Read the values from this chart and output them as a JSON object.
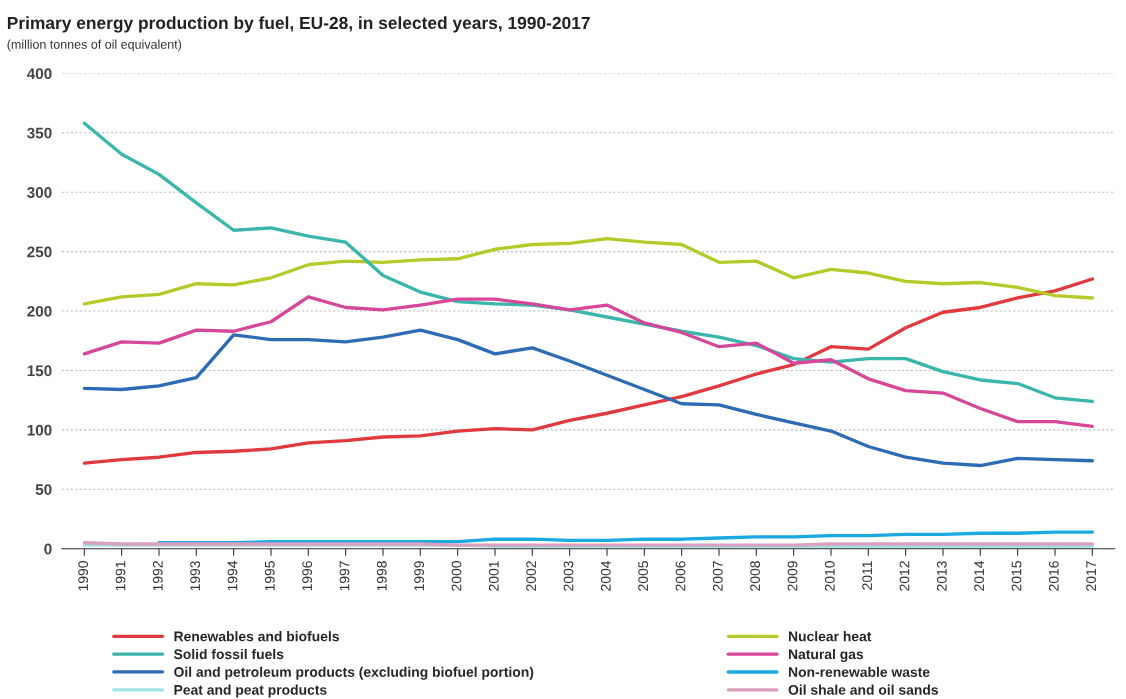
{
  "chart_data": {
    "type": "line",
    "title": "Primary energy production by fuel, EU-28, in selected years, 1990-2017",
    "subtitle": "(million tonnes of oil equivalent)",
    "categories": [
      "1990",
      "1991",
      "1992",
      "1993",
      "1994",
      "1995",
      "1996",
      "1997",
      "1998",
      "1999",
      "2000",
      "2001",
      "2002",
      "2003",
      "2004",
      "2005",
      "2006",
      "2007",
      "2008",
      "2009",
      "2010",
      "2011",
      "2012",
      "2013",
      "2014",
      "2015",
      "2016",
      "2017"
    ],
    "ylim": [
      0,
      400
    ],
    "yticks": [
      0,
      50,
      100,
      150,
      200,
      250,
      300,
      350,
      400
    ],
    "grid": "y",
    "legend": "bottom",
    "marker": "none",
    "line_style": "solid",
    "series": [
      {
        "name": "Renewables and biofuels",
        "color": "#e0393e",
        "values": [
          72,
          75,
          77,
          81,
          82,
          84,
          89,
          91,
          94,
          95,
          99,
          101,
          100,
          108,
          114,
          121,
          128,
          137,
          147,
          155,
          170,
          168,
          186,
          199,
          203,
          211,
          217,
          227
        ]
      },
      {
        "name": "Nuclear heat",
        "color": "#b5c92a",
        "values": [
          206,
          212,
          214,
          223,
          222,
          228,
          239,
          242,
          241,
          243,
          244,
          252,
          256,
          257,
          261,
          258,
          256,
          241,
          242,
          228,
          235,
          232,
          225,
          223,
          224,
          220,
          213,
          211
        ]
      },
      {
        "name": "Solid fossil fuels",
        "color": "#3ab6ab",
        "values": [
          358,
          332,
          315,
          291,
          268,
          270,
          263,
          258,
          230,
          216,
          208,
          206,
          205,
          201,
          195,
          189,
          183,
          178,
          171,
          160,
          157,
          160,
          160,
          149,
          142,
          139,
          127,
          124
        ]
      },
      {
        "name": "Natural gas",
        "color": "#d6479a",
        "values": [
          164,
          174,
          173,
          184,
          183,
          191,
          212,
          203,
          201,
          205,
          210,
          210,
          206,
          201,
          205,
          190,
          182,
          170,
          173,
          156,
          159,
          143,
          133,
          131,
          118,
          107,
          107,
          103
        ]
      },
      {
        "name": "Oil and petroleum products (excluding biofuel portion)",
        "color": "#2e6bb5",
        "values": [
          135,
          134,
          137,
          144,
          180,
          176,
          176,
          174,
          178,
          184,
          176,
          164,
          169,
          158,
          146,
          134,
          122,
          121,
          113,
          106,
          99,
          86,
          77,
          72,
          70,
          76,
          75,
          74
        ]
      },
      {
        "name": "Non-renewable waste",
        "color": "#1aa9e0",
        "values": [
          null,
          null,
          5,
          5,
          5,
          6,
          6,
          6,
          6,
          6,
          6,
          8,
          8,
          7,
          7,
          8,
          8,
          9,
          10,
          10,
          11,
          11,
          12,
          12,
          13,
          13,
          14,
          14
        ]
      },
      {
        "name": "Peat and peat products",
        "color": "#9fe3e8",
        "values": [
          3,
          3,
          3,
          3,
          3,
          3,
          3,
          3,
          3,
          3,
          3,
          2,
          2,
          2,
          2,
          2,
          2,
          2,
          2,
          2,
          2,
          2,
          2,
          2,
          2,
          2,
          2,
          2
        ]
      },
      {
        "name": "Oil shale and oil sands",
        "color": "#d9a0c0",
        "values": [
          5,
          4,
          4,
          4,
          4,
          4,
          4,
          4,
          4,
          4,
          3,
          3,
          3,
          3,
          3,
          3,
          3,
          3,
          3,
          3,
          4,
          4,
          4,
          4,
          4,
          4,
          4,
          4
        ]
      }
    ]
  }
}
